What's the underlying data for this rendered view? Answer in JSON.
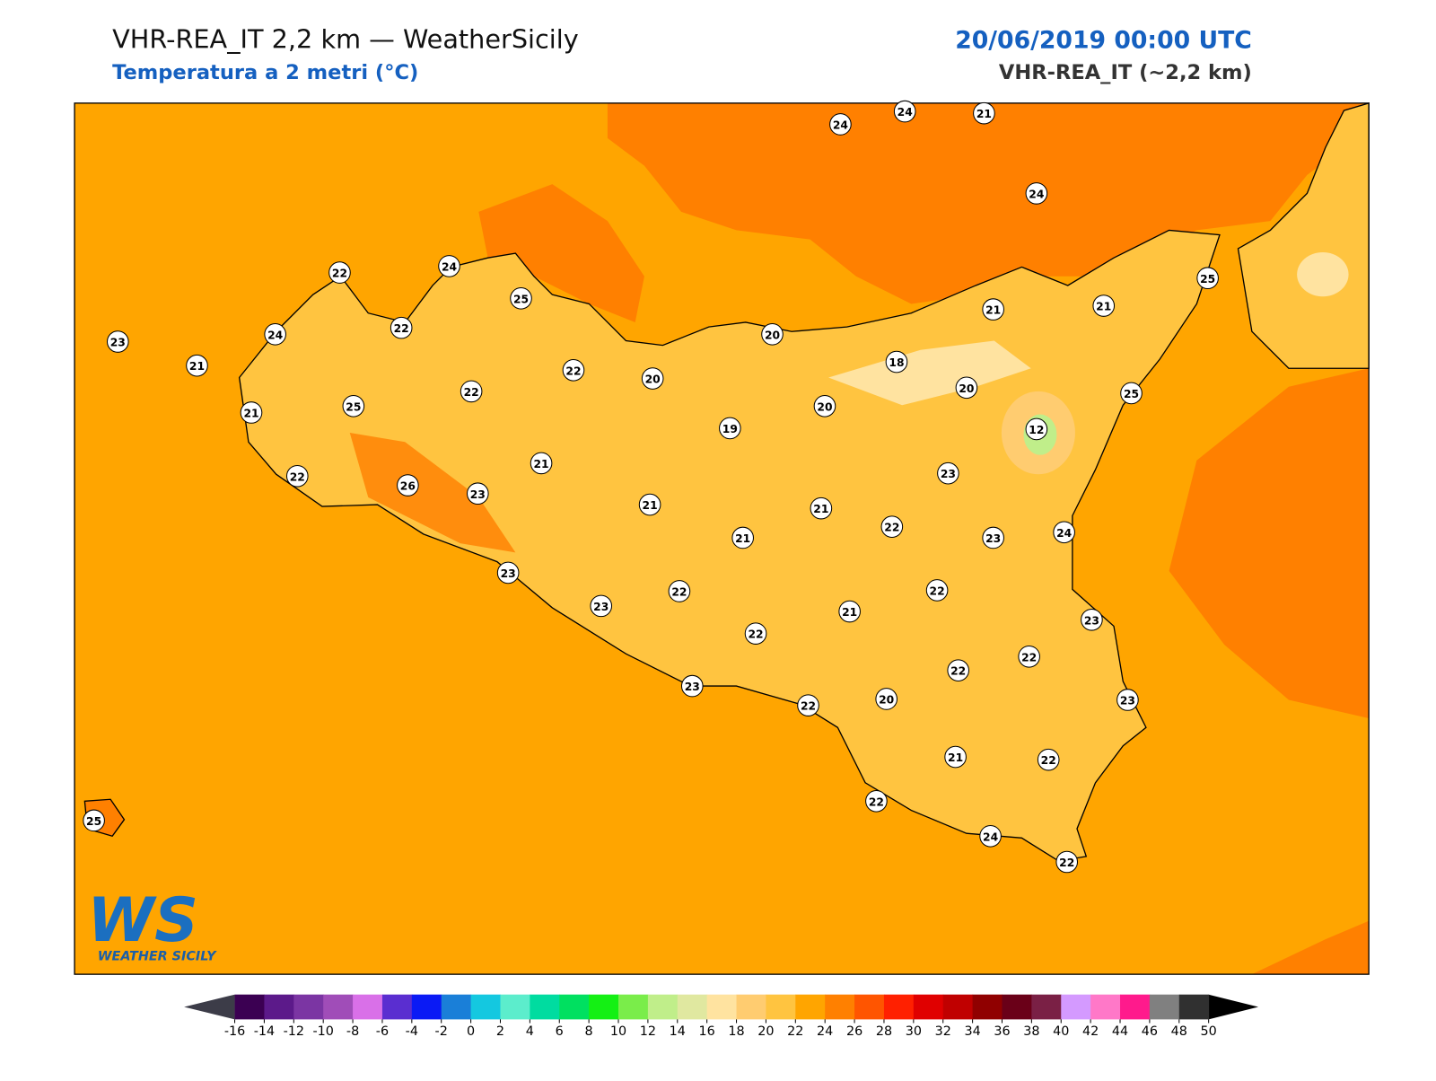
{
  "header": {
    "title": "VHR-REA_IT 2,2 km — WeatherSicily",
    "subtitle": "Temperatura a 2 metri (°C)",
    "datetime": "20/06/2019 00:00 UTC",
    "model": "VHR-REA_IT (~2,2 km)"
  },
  "logo": {
    "mark": "WS",
    "text": "WEATHER SICILY"
  },
  "station_values": [
    24,
    24,
    21,
    24,
    22,
    24,
    25,
    22,
    24,
    23,
    21,
    22,
    20,
    20,
    21,
    21,
    25,
    18,
    20,
    25,
    20,
    22,
    25,
    21,
    19,
    12,
    21,
    22,
    26,
    23,
    23,
    21,
    21,
    21,
    22,
    23,
    24,
    23,
    22,
    22,
    23,
    21,
    23,
    22,
    22,
    22,
    23,
    22,
    20,
    23,
    21,
    22,
    22,
    24,
    22,
    25
  ],
  "colorbar": {
    "ticks": [
      -16,
      -14,
      -12,
      -10,
      -8,
      -6,
      -4,
      -2,
      0,
      2,
      4,
      6,
      8,
      10,
      12,
      14,
      16,
      18,
      20,
      22,
      24,
      26,
      28,
      30,
      32,
      34,
      36,
      38,
      40,
      42,
      44,
      46,
      48,
      50
    ],
    "colors": [
      "#3b0052",
      "#5c1a8a",
      "#7b35a3",
      "#a04db8",
      "#d970e8",
      "#5a2ed0",
      "#0a1af5",
      "#1a7fd8",
      "#14c8e0",
      "#5cedcc",
      "#00dca0",
      "#00e060",
      "#14f014",
      "#7aed4a",
      "#c0ee8a",
      "#e0e8a0",
      "#ffe3a0",
      "#ffcc70",
      "#ffc440",
      "#ffa500",
      "#ff8000",
      "#ff5500",
      "#ff2000",
      "#e00000",
      "#c00000",
      "#900000",
      "#6a0018",
      "#7a2045",
      "#d49aff",
      "#ff78c8",
      "#ff1a8c",
      "#808080",
      "#303030"
    ],
    "under_color": "#3c3c48",
    "over_color": "#000000"
  }
}
